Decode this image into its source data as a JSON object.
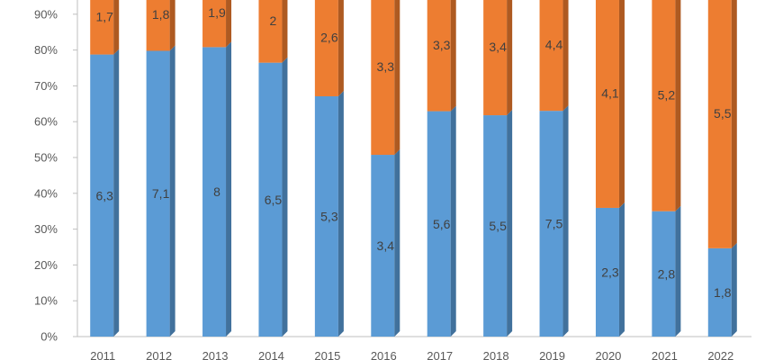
{
  "chart_data": {
    "type": "bar",
    "stacked": "percent",
    "style": "3d-column",
    "categories": [
      "2011",
      "2012",
      "2013",
      "2014",
      "2015",
      "2016",
      "2017",
      "2018",
      "2019",
      "2020",
      "2021",
      "2022"
    ],
    "series": [
      {
        "values": [
          6.3,
          7.1,
          8,
          6.5,
          5.3,
          3.4,
          5.6,
          5.5,
          7.5,
          2.3,
          2.8,
          1.8
        ],
        "labels": [
          "6,3",
          "7,1",
          "8",
          "6,5",
          "5,3",
          "3,4",
          "5,6",
          "5,5",
          "7,5",
          "2,3",
          "2,8",
          "1,8"
        ],
        "color": "#5B9BD5",
        "side_color": "#41719C"
      },
      {
        "values": [
          1.7,
          1.8,
          1.9,
          2,
          2.6,
          3.3,
          3.3,
          3.4,
          4.4,
          4.1,
          5.2,
          5.5
        ],
        "labels": [
          "1,7",
          "1,8",
          "1,9",
          "2",
          "2,6",
          "3,3",
          "3,3",
          "3,4",
          "4,4",
          "4,1",
          "5,2",
          "5,5"
        ],
        "color": "#ED7D31",
        "side_color": "#AE5A21"
      }
    ],
    "y_ticks": [
      "0%",
      "10%",
      "20%",
      "30%",
      "40%",
      "50%",
      "60%",
      "70%",
      "80%",
      "90%"
    ],
    "ylim": [
      0,
      90
    ],
    "grid": false,
    "legend": "none"
  }
}
